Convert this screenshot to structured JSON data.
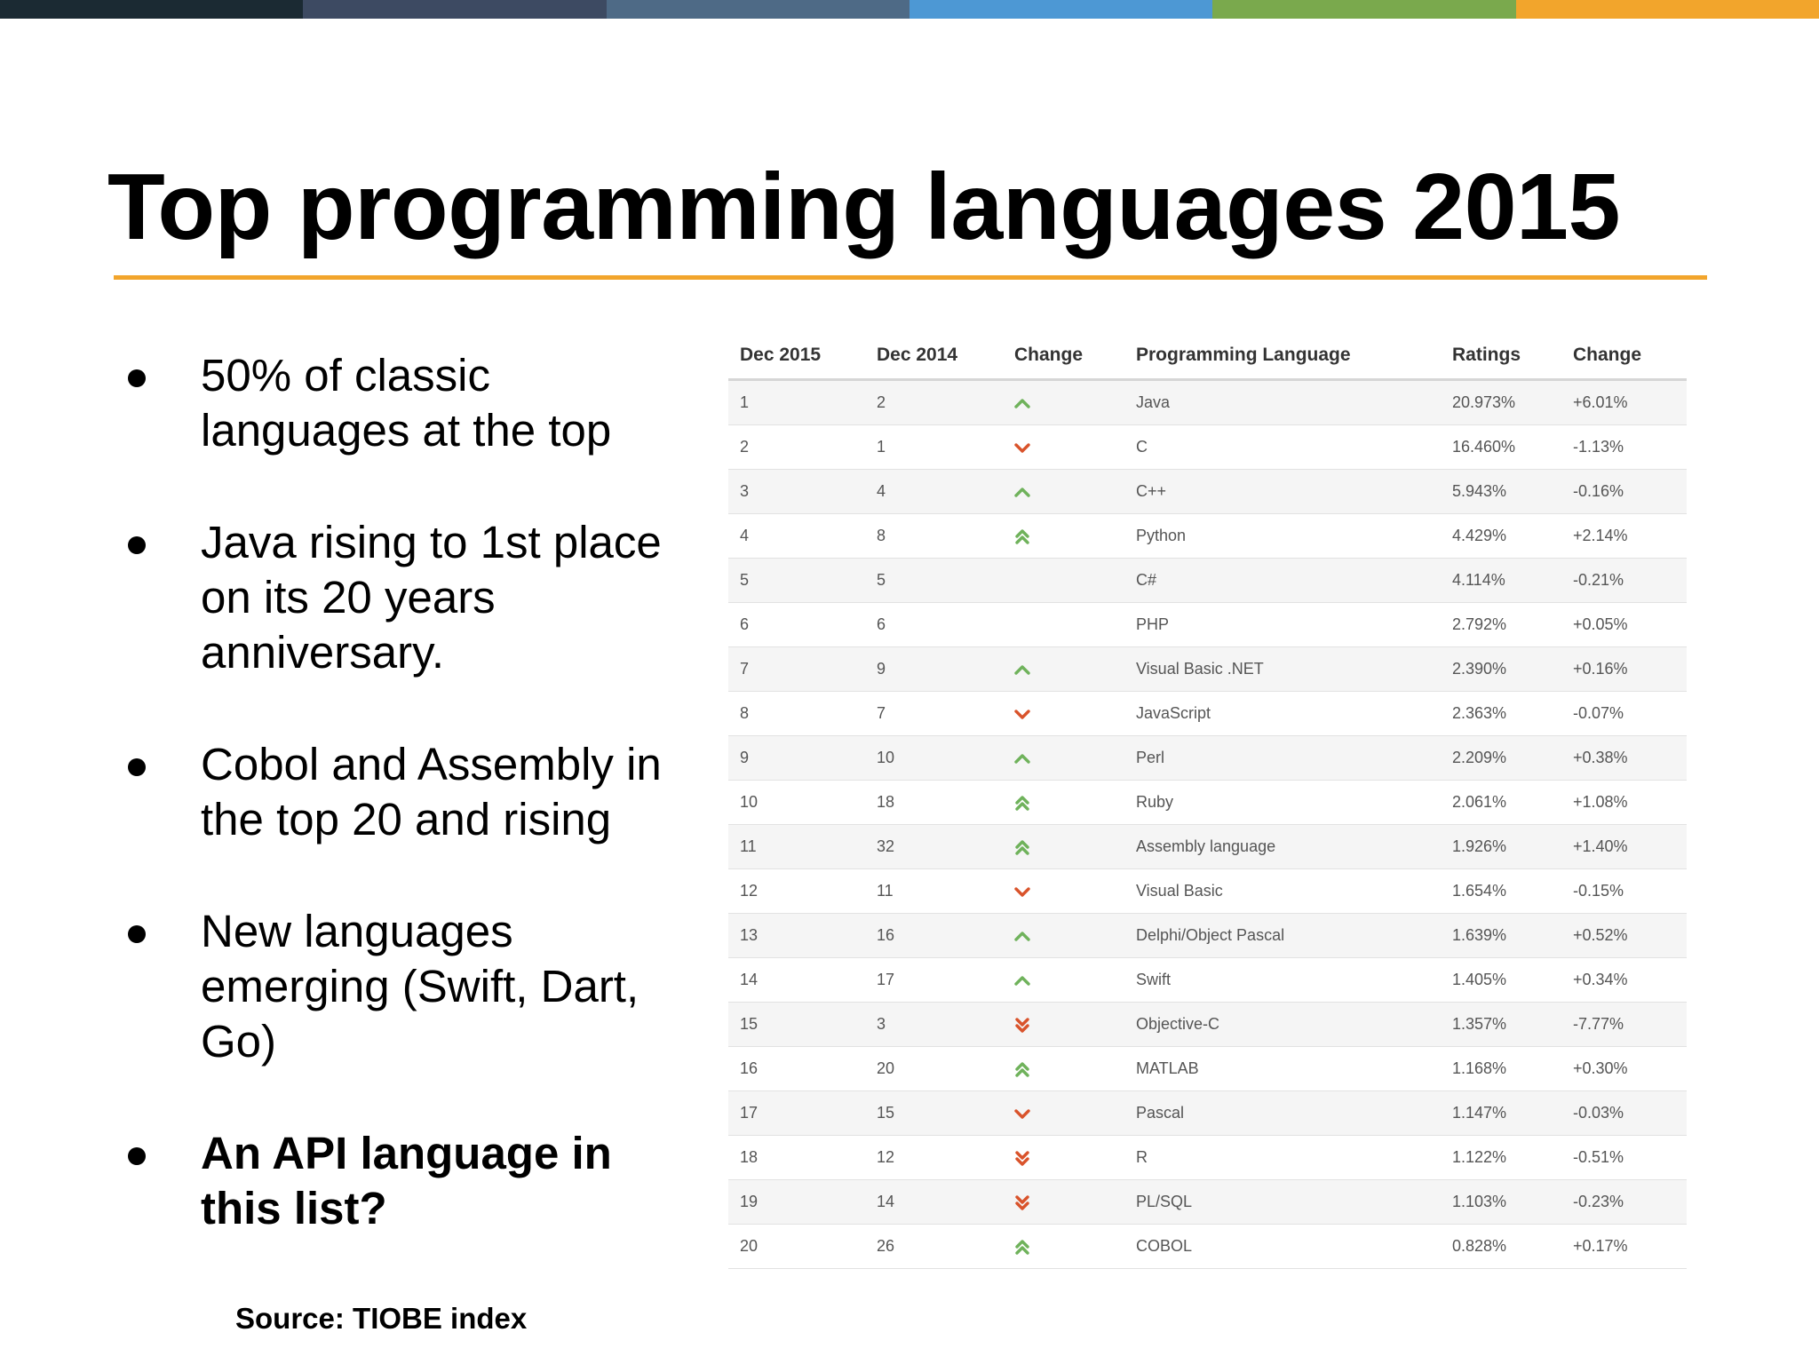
{
  "top_bar_colors": [
    "#1b2a33",
    "#3d4a62",
    "#4e6a86",
    "#4d98d4",
    "#7aa94d",
    "#f2a52c"
  ],
  "accent_color": "#f2a52c",
  "up_color": "#6fb25b",
  "down_color": "#d9532b",
  "title": "Top programming languages 2015",
  "bullets": [
    {
      "text": "50% of classic languages at the top",
      "bold": false
    },
    {
      "text": "Java rising to 1st place on its 20 years anniversary.",
      "bold": false
    },
    {
      "text": "Cobol and Assembly in the top 20 and rising",
      "bold": false
    },
    {
      "text": "New languages emerging (Swift, Dart, Go)",
      "bold": false
    },
    {
      "text": "An API language in this list?",
      "bold": true
    }
  ],
  "source": "Source: TIOBE index",
  "table": {
    "headers": [
      "Dec 2015",
      "Dec 2014",
      "Change",
      "Programming Language",
      "Ratings",
      "Change"
    ],
    "rows": [
      {
        "dec2015": "1",
        "dec2014": "2",
        "trend": "up",
        "language": "Java",
        "rating": "20.973%",
        "change": "+6.01%"
      },
      {
        "dec2015": "2",
        "dec2014": "1",
        "trend": "down",
        "language": "C",
        "rating": "16.460%",
        "change": "-1.13%"
      },
      {
        "dec2015": "3",
        "dec2014": "4",
        "trend": "up",
        "language": "C++",
        "rating": "5.943%",
        "change": "-0.16%"
      },
      {
        "dec2015": "4",
        "dec2014": "8",
        "trend": "up-double",
        "language": "Python",
        "rating": "4.429%",
        "change": "+2.14%"
      },
      {
        "dec2015": "5",
        "dec2014": "5",
        "trend": "none",
        "language": "C#",
        "rating": "4.114%",
        "change": "-0.21%"
      },
      {
        "dec2015": "6",
        "dec2014": "6",
        "trend": "none",
        "language": "PHP",
        "rating": "2.792%",
        "change": "+0.05%"
      },
      {
        "dec2015": "7",
        "dec2014": "9",
        "trend": "up",
        "language": "Visual Basic .NET",
        "rating": "2.390%",
        "change": "+0.16%"
      },
      {
        "dec2015": "8",
        "dec2014": "7",
        "trend": "down",
        "language": "JavaScript",
        "rating": "2.363%",
        "change": "-0.07%"
      },
      {
        "dec2015": "9",
        "dec2014": "10",
        "trend": "up",
        "language": "Perl",
        "rating": "2.209%",
        "change": "+0.38%"
      },
      {
        "dec2015": "10",
        "dec2014": "18",
        "trend": "up-double",
        "language": "Ruby",
        "rating": "2.061%",
        "change": "+1.08%"
      },
      {
        "dec2015": "11",
        "dec2014": "32",
        "trend": "up-double",
        "language": "Assembly language",
        "rating": "1.926%",
        "change": "+1.40%"
      },
      {
        "dec2015": "12",
        "dec2014": "11",
        "trend": "down",
        "language": "Visual Basic",
        "rating": "1.654%",
        "change": "-0.15%"
      },
      {
        "dec2015": "13",
        "dec2014": "16",
        "trend": "up",
        "language": "Delphi/Object Pascal",
        "rating": "1.639%",
        "change": "+0.52%"
      },
      {
        "dec2015": "14",
        "dec2014": "17",
        "trend": "up",
        "language": "Swift",
        "rating": "1.405%",
        "change": "+0.34%"
      },
      {
        "dec2015": "15",
        "dec2014": "3",
        "trend": "down-double",
        "language": "Objective-C",
        "rating": "1.357%",
        "change": "-7.77%"
      },
      {
        "dec2015": "16",
        "dec2014": "20",
        "trend": "up-double",
        "language": "MATLAB",
        "rating": "1.168%",
        "change": "+0.30%"
      },
      {
        "dec2015": "17",
        "dec2014": "15",
        "trend": "down",
        "language": "Pascal",
        "rating": "1.147%",
        "change": "-0.03%"
      },
      {
        "dec2015": "18",
        "dec2014": "12",
        "trend": "down-double",
        "language": "R",
        "rating": "1.122%",
        "change": "-0.51%"
      },
      {
        "dec2015": "19",
        "dec2014": "14",
        "trend": "down-double",
        "language": "PL/SQL",
        "rating": "1.103%",
        "change": "-0.23%"
      },
      {
        "dec2015": "20",
        "dec2014": "26",
        "trend": "up-double",
        "language": "COBOL",
        "rating": "0.828%",
        "change": "+0.17%"
      }
    ]
  }
}
